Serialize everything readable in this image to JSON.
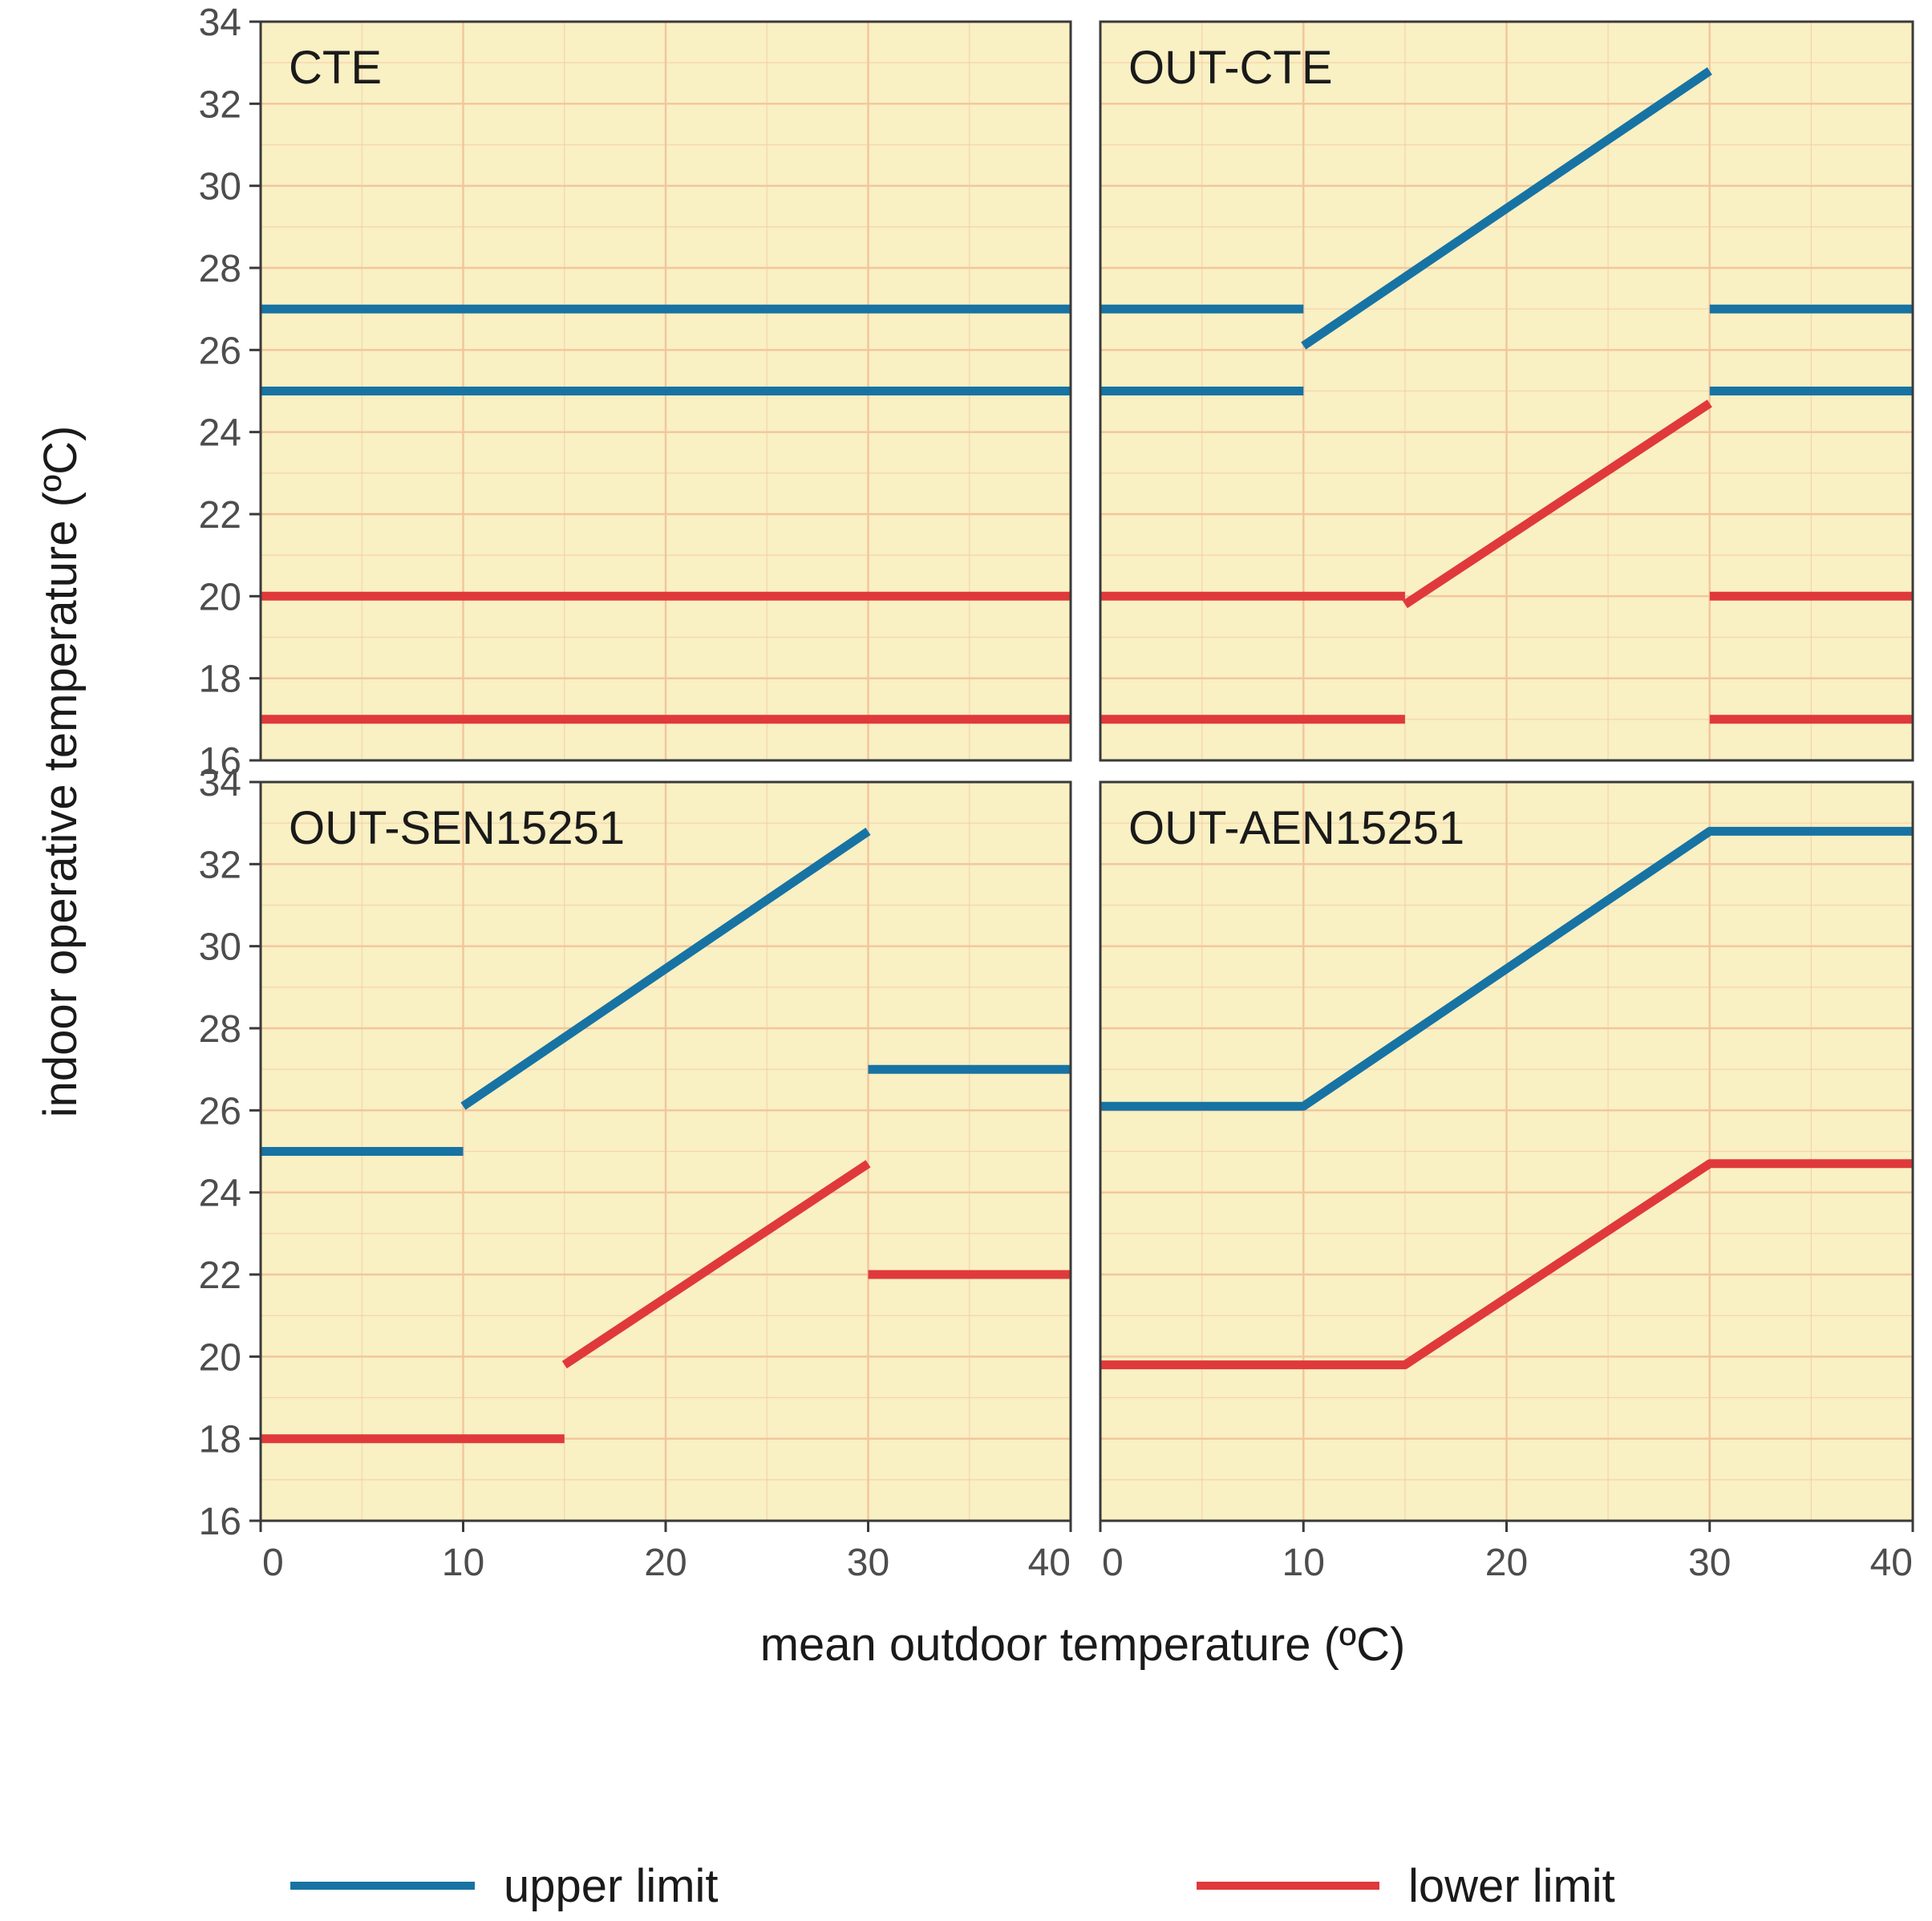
{
  "chart_data": {
    "type": "line",
    "layout": "2x2 facet grid",
    "xlabel": "mean outdoor temperature (ºC)",
    "ylabel": "indoor operative temperature (ºC)",
    "xlim": [
      0,
      40
    ],
    "ylim": [
      16,
      34
    ],
    "xticks": [
      "0",
      "10",
      "20",
      "30",
      "40"
    ],
    "yticks": [
      "16",
      "18",
      "20",
      "22",
      "24",
      "26",
      "28",
      "30",
      "32",
      "34"
    ],
    "grid": true,
    "legend_position": "bottom",
    "colors": {
      "upper": "#1773a3",
      "lower": "#e0393b",
      "panel_bg": "#f9f0c4",
      "grid": "#f3c59b"
    },
    "legend": [
      {
        "key": "upper",
        "label": "upper limit"
      },
      {
        "key": "lower",
        "label": "lower limit"
      }
    ],
    "panels": [
      {
        "title": "CTE",
        "series": [
          {
            "name": "upper limit",
            "key": "upper",
            "segments": [
              [
                [
                  0,
                  27
                ],
                [
                  40,
                  27
                ]
              ],
              [
                [
                  0,
                  25
                ],
                [
                  40,
                  25
                ]
              ]
            ]
          },
          {
            "name": "lower limit",
            "key": "lower",
            "segments": [
              [
                [
                  0,
                  20
                ],
                [
                  40,
                  20
                ]
              ],
              [
                [
                  0,
                  17
                ],
                [
                  40,
                  17
                ]
              ]
            ]
          }
        ]
      },
      {
        "title": "OUT-CTE",
        "series": [
          {
            "name": "upper limit",
            "key": "upper",
            "segments": [
              [
                [
                  0,
                  27
                ],
                [
                  10,
                  27
                ]
              ],
              [
                [
                  0,
                  25
                ],
                [
                  10,
                  25
                ]
              ],
              [
                [
                  10,
                  26.1
                ],
                [
                  30,
                  32.8
                ]
              ],
              [
                [
                  30,
                  27
                ],
                [
                  40,
                  27
                ]
              ],
              [
                [
                  30,
                  25
                ],
                [
                  40,
                  25
                ]
              ]
            ]
          },
          {
            "name": "lower limit",
            "key": "lower",
            "segments": [
              [
                [
                  0,
                  20
                ],
                [
                  15,
                  20
                ]
              ],
              [
                [
                  0,
                  17
                ],
                [
                  15,
                  17
                ]
              ],
              [
                [
                  15,
                  19.8
                ],
                [
                  30,
                  24.7
                ]
              ],
              [
                [
                  30,
                  20
                ],
                [
                  40,
                  20
                ]
              ],
              [
                [
                  30,
                  17
                ],
                [
                  40,
                  17
                ]
              ]
            ]
          }
        ]
      },
      {
        "title": "OUT-SEN15251",
        "series": [
          {
            "name": "upper limit",
            "key": "upper",
            "segments": [
              [
                [
                  0,
                  25
                ],
                [
                  10,
                  25
                ]
              ],
              [
                [
                  10,
                  26.1
                ],
                [
                  30,
                  32.8
                ]
              ],
              [
                [
                  30,
                  27
                ],
                [
                  40,
                  27
                ]
              ]
            ]
          },
          {
            "name": "lower limit",
            "key": "lower",
            "segments": [
              [
                [
                  0,
                  18
                ],
                [
                  15,
                  18
                ]
              ],
              [
                [
                  15,
                  19.8
                ],
                [
                  30,
                  24.7
                ]
              ],
              [
                [
                  30,
                  22
                ],
                [
                  40,
                  22
                ]
              ]
            ]
          }
        ]
      },
      {
        "title": "OUT-AEN15251",
        "series": [
          {
            "name": "upper limit",
            "key": "upper",
            "segments": [
              [
                [
                  0,
                  26.1
                ],
                [
                  10,
                  26.1
                ],
                [
                  30,
                  32.8
                ],
                [
                  40,
                  32.8
                ]
              ]
            ]
          },
          {
            "name": "lower limit",
            "key": "lower",
            "segments": [
              [
                [
                  0,
                  19.8
                ],
                [
                  15,
                  19.8
                ],
                [
                  30,
                  24.7
                ],
                [
                  40,
                  24.7
                ]
              ]
            ]
          }
        ]
      }
    ]
  }
}
